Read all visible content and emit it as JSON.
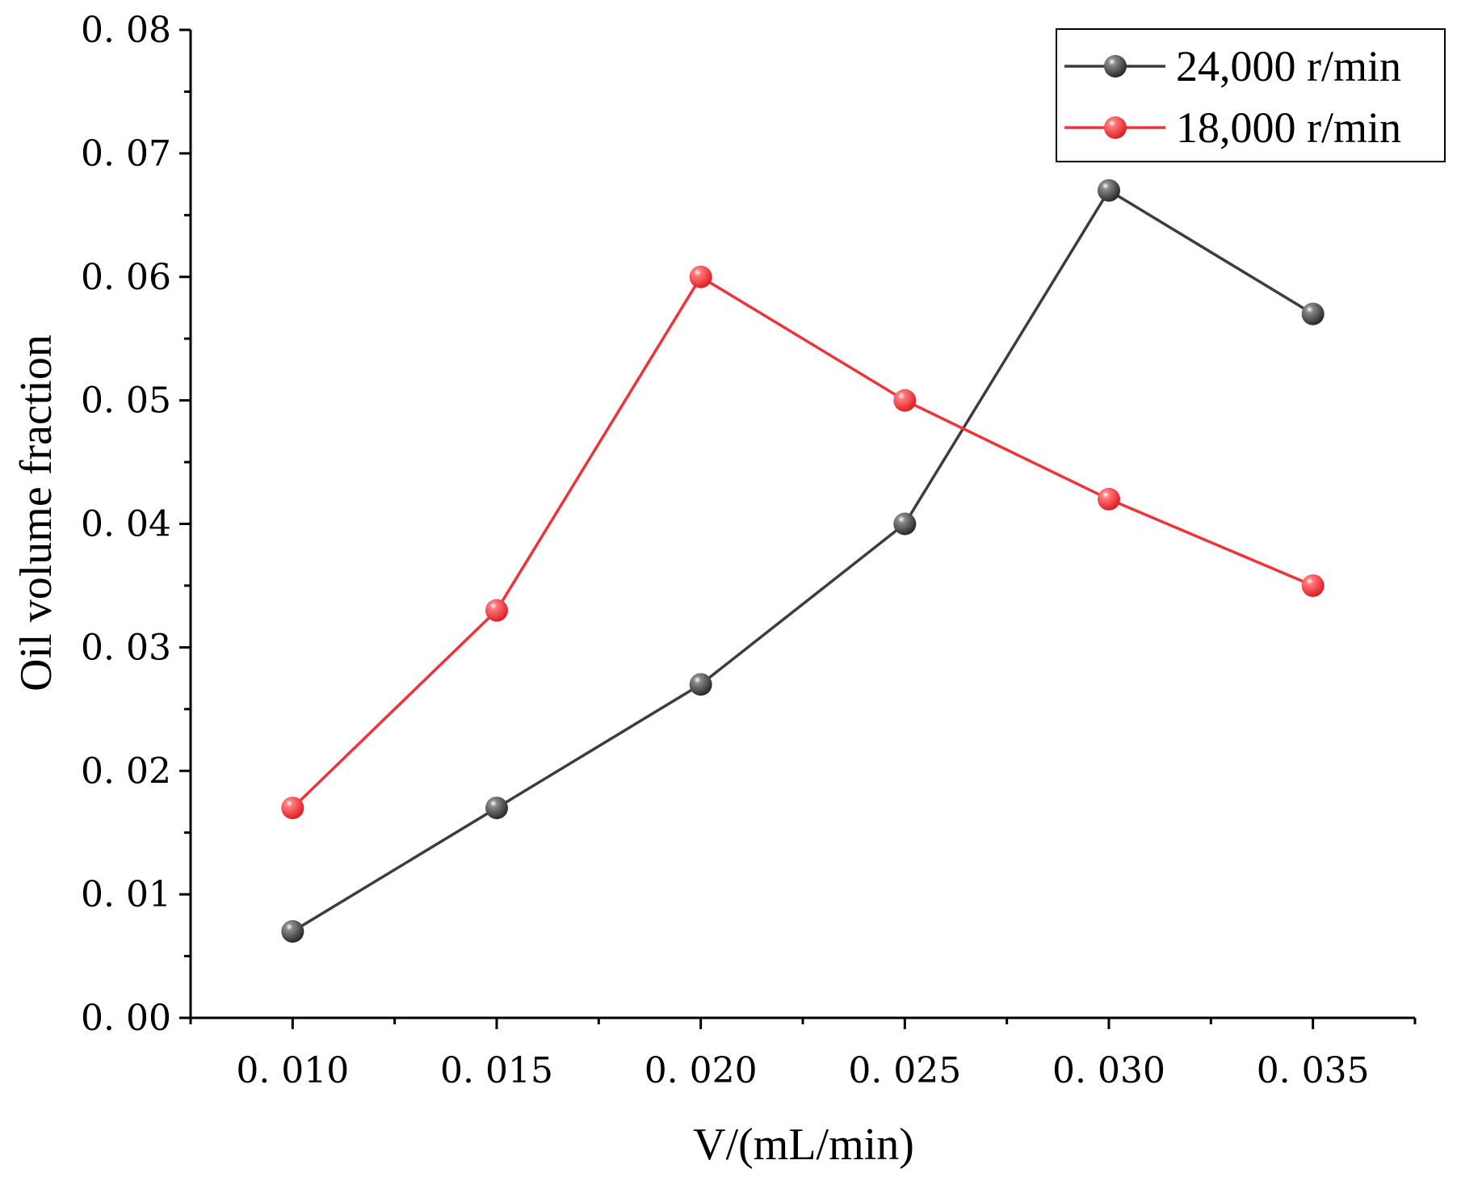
{
  "chart_data": {
    "type": "line",
    "title": "",
    "xlabel": "V/(mL/min)",
    "ylabel": "Oil volume fraction",
    "x": [
      0.01,
      0.015,
      0.02,
      0.025,
      0.03,
      0.035
    ],
    "xlim": [
      0.0075,
      0.0375
    ],
    "ylim": [
      0.0,
      0.08
    ],
    "x_tick_labels": [
      "0. 010",
      "0. 015",
      "0. 020",
      "0. 025",
      "0. 030",
      "0. 035"
    ],
    "y_tick_labels": [
      "0. 00",
      "0. 01",
      "0. 02",
      "0. 03",
      "0. 04",
      "0. 05",
      "0. 06",
      "0. 07",
      "0. 08"
    ],
    "legend_position": "top-right",
    "grid": false,
    "series": [
      {
        "name": "24,000 r/min",
        "color": "#3d3d3d",
        "marker_color": "#4a4a4a",
        "values": [
          0.007,
          0.017,
          0.027,
          0.04,
          0.067,
          0.057
        ]
      },
      {
        "name": "18,000 r/min",
        "color": "#ee3438",
        "marker_color": "#f2383c",
        "values": [
          0.017,
          0.033,
          0.06,
          0.05,
          0.042,
          0.035
        ]
      }
    ]
  }
}
